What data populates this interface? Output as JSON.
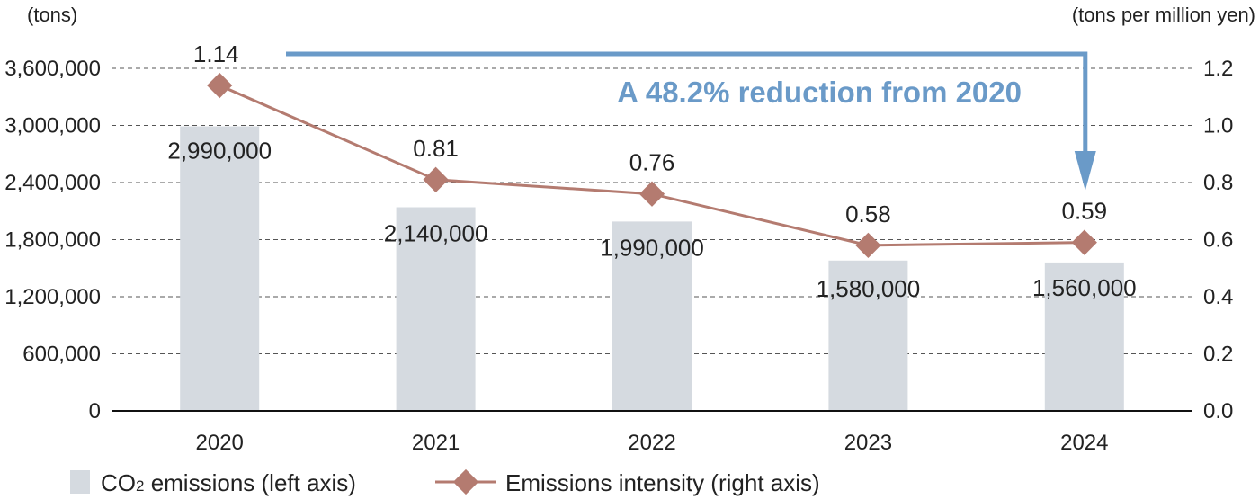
{
  "chart_data": {
    "type": "bar",
    "categories": [
      "2020",
      "2021",
      "2022",
      "2023",
      "2024"
    ],
    "series": [
      {
        "name": "CO2 emissions (left axis)",
        "legend_main": "CO",
        "legend_sub": "2",
        "legend_rest": " emissions (left axis)",
        "type": "bar",
        "axis": "left",
        "values": [
          2990000,
          2140000,
          1990000,
          1580000,
          1560000
        ],
        "labels": [
          "2,990,000",
          "2,140,000",
          "1,990,000",
          "1,580,000",
          "1,560,000"
        ],
        "color": "#d5dae0"
      },
      {
        "name": "Emissions intensity (right axis)",
        "type": "line",
        "axis": "right",
        "values": [
          1.14,
          0.81,
          0.76,
          0.58,
          0.59
        ],
        "labels": [
          "1.14",
          "0.81",
          "0.76",
          "0.58",
          "0.59"
        ],
        "color": "#b47b70"
      }
    ],
    "left_axis": {
      "unit": "(tons)",
      "range": [
        0,
        3600000
      ],
      "ticks": [
        0,
        600000,
        1200000,
        1800000,
        2400000,
        3000000,
        3600000
      ],
      "tick_labels": [
        "0",
        "600,000",
        "1,200,000",
        "1,800,000",
        "2,400,000",
        "3,000,000",
        "3,600,000"
      ]
    },
    "right_axis": {
      "unit": "(tons per million yen)",
      "range": [
        0,
        1.2
      ],
      "ticks": [
        0,
        0.2,
        0.4,
        0.6,
        0.8,
        1.0,
        1.2
      ],
      "tick_labels": [
        "0.0",
        "0.2",
        "0.4",
        "0.6",
        "0.8",
        "1.0",
        "1.2"
      ]
    },
    "grid": true,
    "annotation": {
      "text": "A 48.2% reduction from 2020",
      "from": "2020",
      "to": "2024",
      "color": "#6a9ac8"
    },
    "legend_position": "bottom-left"
  }
}
